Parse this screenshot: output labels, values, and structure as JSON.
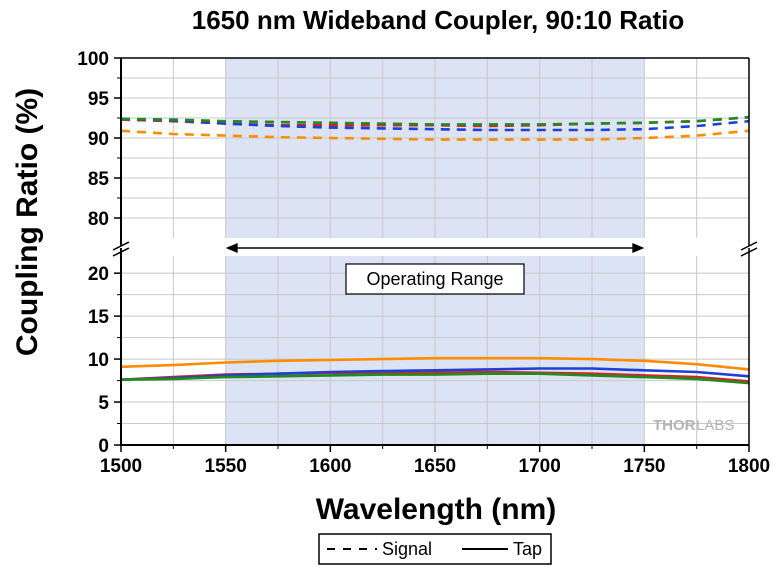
{
  "chart_data": {
    "type": "line",
    "title": "1650 nm Wideband Coupler, 90:10 Ratio",
    "xlabel": "Wavelength (nm)",
    "ylabel": "Coupling Ratio (%)",
    "xlim": [
      1500,
      1800
    ],
    "x_ticks": [
      "1500",
      "1550",
      "1600",
      "1650",
      "1700",
      "1750",
      "1800"
    ],
    "ylim_upper": [
      77.5,
      100
    ],
    "ylim_lower": [
      0,
      22
    ],
    "y_ticks_upper": [
      "80",
      "85",
      "90",
      "95",
      "100"
    ],
    "y_ticks_lower": [
      "0",
      "5",
      "10",
      "15",
      "20"
    ],
    "broken_y_axis": true,
    "grid": true,
    "shaded_region": [
      1550,
      1750
    ],
    "shaded_color": "#dbe3f5",
    "annotation": "Operating Range",
    "legend_position": "bottom-center",
    "legend": [
      {
        "label": "Signal",
        "style": "dashed"
      },
      {
        "label": "Tap",
        "style": "solid"
      }
    ],
    "watermark": "THORLABS",
    "x": [
      1500,
      1525,
      1550,
      1575,
      1600,
      1625,
      1650,
      1675,
      1700,
      1725,
      1750,
      1775,
      1800
    ],
    "series": [
      {
        "group": "Signal",
        "color": "#ff8c00",
        "values": [
          90.9,
          90.5,
          90.3,
          90.1,
          90.0,
          89.9,
          89.8,
          89.8,
          89.8,
          89.8,
          90.0,
          90.3,
          90.9
        ]
      },
      {
        "group": "Signal",
        "color": "#e02020",
        "values": [
          92.3,
          92.1,
          91.8,
          91.6,
          91.6,
          91.6,
          91.6,
          91.5,
          91.6,
          91.8,
          91.9,
          92.1,
          92.6
        ]
      },
      {
        "group": "Signal",
        "color": "#1f3fd6",
        "values": [
          92.4,
          92.2,
          91.8,
          91.5,
          91.3,
          91.2,
          91.1,
          91.0,
          91.0,
          91.0,
          91.1,
          91.5,
          92.1
        ]
      },
      {
        "group": "Signal",
        "color": "#1f8c1f",
        "values": [
          92.4,
          92.3,
          92.1,
          92.0,
          91.9,
          91.8,
          91.7,
          91.7,
          91.7,
          91.8,
          91.9,
          92.1,
          92.6
        ]
      },
      {
        "group": "Tap",
        "color": "#ff8c00",
        "values": [
          9.1,
          9.3,
          9.6,
          9.8,
          9.9,
          10.0,
          10.1,
          10.1,
          10.1,
          10.0,
          9.8,
          9.4,
          8.8
        ]
      },
      {
        "group": "Tap",
        "color": "#e02020",
        "values": [
          7.6,
          7.9,
          8.2,
          8.3,
          8.4,
          8.4,
          8.4,
          8.5,
          8.4,
          8.3,
          8.1,
          7.9,
          7.4
        ]
      },
      {
        "group": "Tap",
        "color": "#1f3fd6",
        "values": [
          7.6,
          7.8,
          8.1,
          8.3,
          8.5,
          8.6,
          8.7,
          8.8,
          8.9,
          8.9,
          8.7,
          8.5,
          8.0
        ]
      },
      {
        "group": "Tap",
        "color": "#1f8c1f",
        "values": [
          7.6,
          7.7,
          7.9,
          8.0,
          8.1,
          8.2,
          8.2,
          8.3,
          8.3,
          8.1,
          7.9,
          7.7,
          7.2
        ]
      }
    ]
  }
}
